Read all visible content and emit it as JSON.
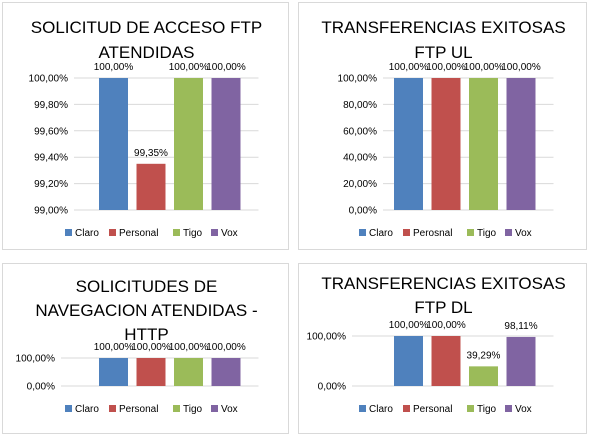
{
  "colors": {
    "Claro": "#4f81bd",
    "Personal": "#c0504d",
    "Tigo": "#9bbb59",
    "Vox": "#8064a2",
    "grid": "#d9d9d9"
  },
  "chart_data": [
    {
      "type": "bar",
      "title": [
        "SOLICITUD DE ACCESO FTP",
        "ATENDIDAS"
      ],
      "categories": [
        "Claro",
        "Personal",
        "Tigo",
        "Vox"
      ],
      "legend": [
        "Claro",
        "Personal",
        "Tigo",
        "Vox"
      ],
      "values": [
        100.0,
        99.35,
        100.0,
        100.0
      ],
      "data_labels": [
        "100,00%",
        "99,35%",
        "100,00%",
        "100,00%"
      ],
      "ylim": [
        99.0,
        100.0
      ],
      "yticks": [
        99.0,
        99.2,
        99.4,
        99.6,
        99.8,
        100.0
      ],
      "ytick_labels": [
        "99,00%",
        "99,20%",
        "99,40%",
        "99,60%",
        "99,80%",
        "100,00%"
      ],
      "grid": true,
      "legend_position": "bottom"
    },
    {
      "type": "bar",
      "title": [
        "TRANSFERENCIAS EXITOSAS",
        "FTP UL"
      ],
      "categories": [
        "Claro",
        "Perosnal",
        "Tigo",
        "Vox"
      ],
      "legend": [
        "Claro",
        "Perosnal",
        "Tigo",
        "Vox"
      ],
      "values": [
        100.0,
        100.0,
        100.0,
        100.0
      ],
      "data_labels": [
        "100,00%",
        "100,00%",
        "100,00%",
        "100,00%"
      ],
      "ylim": [
        0,
        100
      ],
      "yticks": [
        0,
        20,
        40,
        60,
        80,
        100
      ],
      "ytick_labels": [
        "0,00%",
        "20,00%",
        "40,00%",
        "60,00%",
        "80,00%",
        "100,00%"
      ],
      "grid": true,
      "legend_position": "bottom"
    },
    {
      "type": "bar",
      "title": [
        "SOLICITUDES DE",
        "NAVEGACION ATENDIDAS -",
        "HTTP"
      ],
      "categories": [
        "Claro",
        "Personal",
        "Tigo",
        "Vox"
      ],
      "legend": [
        "Claro",
        "Personal",
        "Tigo",
        "Vox"
      ],
      "values": [
        100.0,
        100.0,
        100.0,
        100.0
      ],
      "data_labels": [
        "100,00%",
        "100,00%",
        "100,00%",
        "100,00%"
      ],
      "ylim": [
        0,
        100
      ],
      "yticks": [
        0,
        100
      ],
      "ytick_labels": [
        "0,00%",
        "100,00%"
      ],
      "grid": true,
      "legend_position": "bottom"
    },
    {
      "type": "bar",
      "title": [
        "TRANSFERENCIAS EXITOSAS",
        "FTP DL"
      ],
      "categories": [
        "Claro",
        "Personal",
        "Tigo",
        "Vox"
      ],
      "legend": [
        "Claro",
        "Personal",
        "Tigo",
        "Vox"
      ],
      "values": [
        100.0,
        100.0,
        39.29,
        98.11
      ],
      "data_labels": [
        "100,00%",
        "100,00%",
        "39,29%",
        "98,11%"
      ],
      "ylim": [
        0,
        100
      ],
      "yticks": [
        0,
        100
      ],
      "ytick_labels": [
        "0,00%",
        "100,00%"
      ],
      "grid": true,
      "legend_position": "bottom"
    }
  ]
}
